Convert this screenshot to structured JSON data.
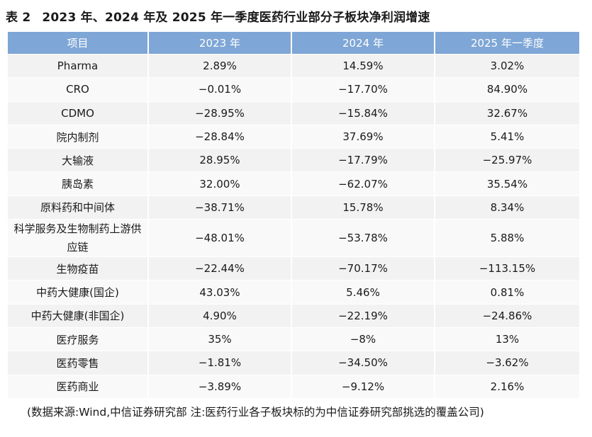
{
  "title": {
    "label": "表 2",
    "text": "2023 年、2024 年及 2025 年一季度医药行业部分子板块净利润增速"
  },
  "table": {
    "headers": [
      "项目",
      "2023 年",
      "2024 年",
      "2025 年一季度"
    ],
    "rows": [
      [
        "Pharma",
        "2.89%",
        "14.59%",
        "3.02%"
      ],
      [
        "CRO",
        "−0.01%",
        "−17.70%",
        "84.90%"
      ],
      [
        "CDMO",
        "−28.95%",
        "−15.84%",
        "32.67%"
      ],
      [
        "院内制剂",
        "−28.84%",
        "37.69%",
        "5.41%"
      ],
      [
        "大输液",
        "28.95%",
        "−17.79%",
        "−25.97%"
      ],
      [
        "胰岛素",
        "32.00%",
        "−62.07%",
        "35.54%"
      ],
      [
        "原料药和中间体",
        "−38.71%",
        "15.78%",
        "8.34%"
      ],
      [
        "科学服务及生物制药上游供应链",
        "−48.01%",
        "−53.78%",
        "5.88%"
      ],
      [
        "生物疫苗",
        "−22.44%",
        "−70.17%",
        "−113.15%"
      ],
      [
        "中药大健康(国企)",
        "43.03%",
        "5.46%",
        "0.81%"
      ],
      [
        "中药大健康(非国企)",
        "4.90%",
        "−22.19%",
        "−24.86%"
      ],
      [
        "医疗服务",
        "35%",
        "−8%",
        "13%"
      ],
      [
        "医药零售",
        "−1.81%",
        "−34.50%",
        "−3.62%"
      ],
      [
        "医药商业",
        "−3.89%",
        "−9.12%",
        "2.16%"
      ]
    ]
  },
  "source": "(数据来源:Wind,中信证券研究部 注:医药行业各子板块标的为中信证券研究部挑选的覆盖公司)",
  "colors": {
    "header_bg": "#7ea6d6",
    "row_odd": "#f2f2f2",
    "row_even": "#f9f9f9"
  }
}
